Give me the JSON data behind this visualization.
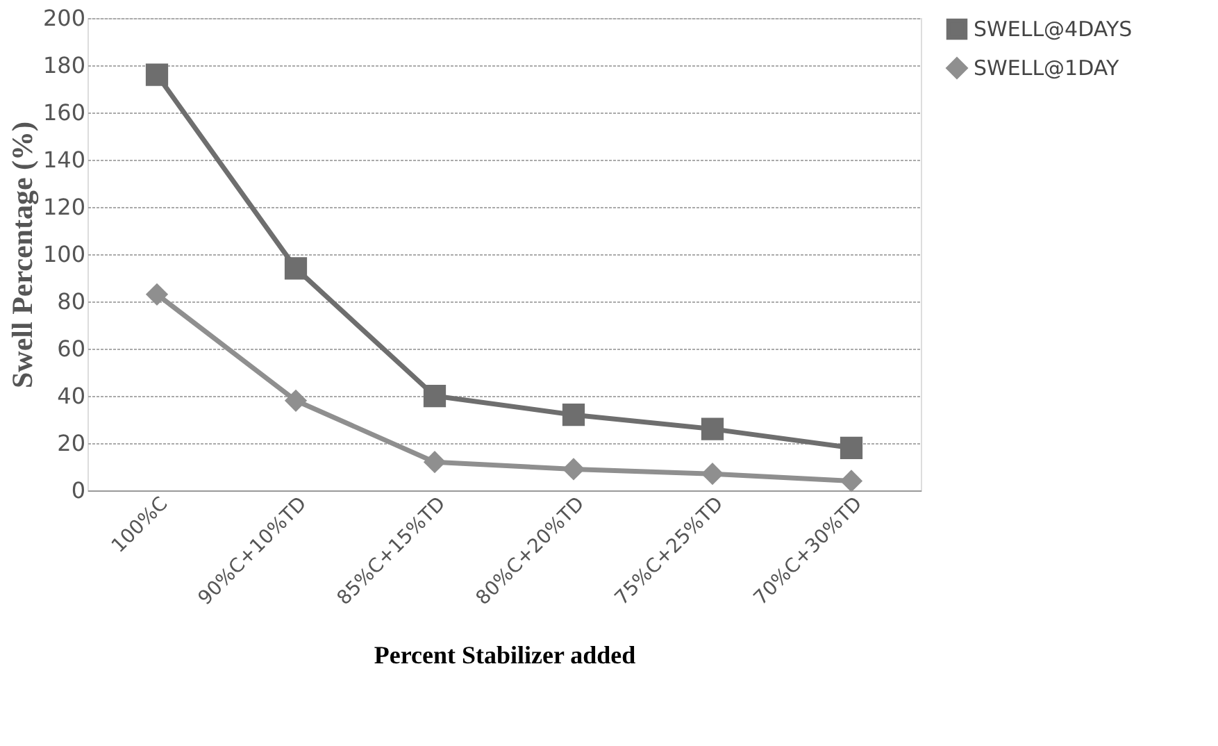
{
  "chart_data": {
    "type": "line",
    "xlabel": "Percent Stabilizer added",
    "ylabel": "Swell Percentage (%)",
    "categories": [
      "100%C",
      "90%C+10%TD",
      "85%C+15%TD",
      "80%C+20%TD",
      "75%C+25%TD",
      "70%C+30%TD"
    ],
    "series": [
      {
        "name": "SWELL@4DAYS",
        "color": "#6e6e6e",
        "marker": "square",
        "values": [
          176,
          94,
          40,
          32,
          26,
          18
        ]
      },
      {
        "name": "SWELL@1DAY",
        "color": "#8f8f8f",
        "marker": "diamond",
        "values": [
          83,
          38,
          12,
          9,
          7,
          4
        ]
      }
    ],
    "ylim": [
      0,
      200
    ],
    "yticks": [
      0,
      20,
      40,
      60,
      80,
      100,
      120,
      140,
      160,
      180,
      200
    ],
    "grid": "y",
    "legend": "right"
  }
}
